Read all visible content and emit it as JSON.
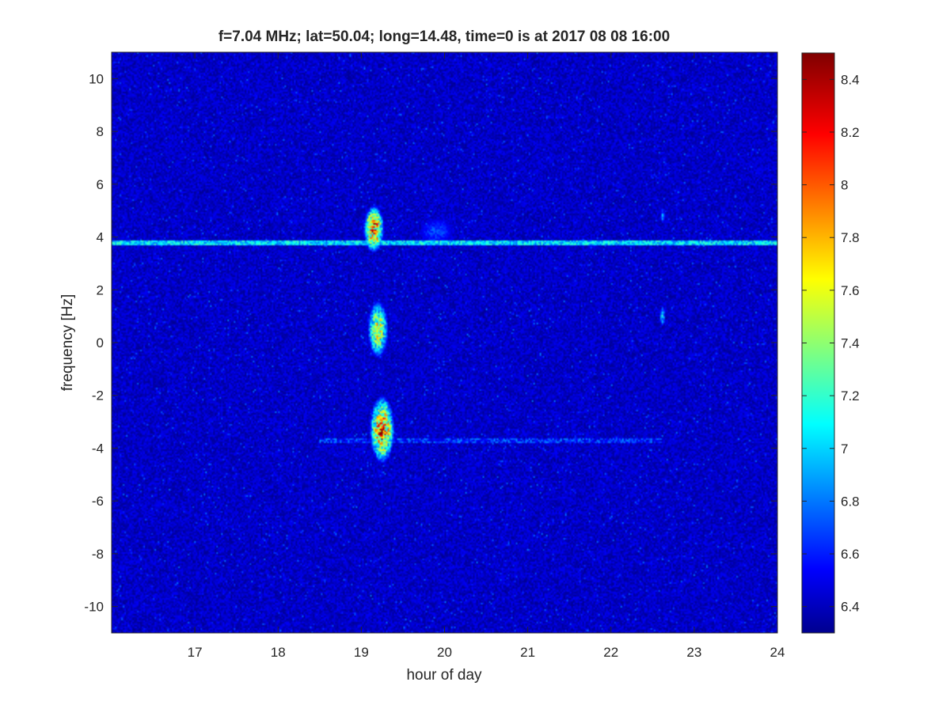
{
  "chart_data": {
    "type": "heatmap",
    "title": "f=7.04 MHz;  lat=50.04; long=14.48, time=0 is at 2017 08 08 16:00",
    "xlabel": "hour of day",
    "ylabel": "frequency [Hz]",
    "xlim": [
      16,
      24
    ],
    "ylim": [
      -11,
      11
    ],
    "x_ticks": [
      "17",
      "18",
      "19",
      "20",
      "21",
      "22",
      "23",
      "24"
    ],
    "y_ticks": [
      "10",
      "8",
      "6",
      "4",
      "2",
      "0",
      "-2",
      "-4",
      "-6",
      "-8",
      "-10"
    ],
    "colorbar": {
      "colormap": "jet",
      "range": [
        6.3,
        8.5
      ],
      "ticks": [
        "8.4",
        "8.2",
        "8",
        "7.8",
        "7.6",
        "7.4",
        "7.2",
        "7",
        "6.8",
        "6.6",
        "6.4"
      ]
    },
    "background_value": 6.45,
    "features": [
      {
        "kind": "horizontal-line",
        "frequency": 3.8,
        "x_range": [
          16,
          24
        ],
        "value": 7.3
      },
      {
        "kind": "horizontal-line",
        "frequency": -3.7,
        "x_range": [
          18.5,
          22.6
        ],
        "value": 6.9
      },
      {
        "kind": "blob",
        "hour": 19.15,
        "frequency": 4.3,
        "hour_width": 0.25,
        "freq_height": 1.8,
        "value": 8.4
      },
      {
        "kind": "blob",
        "hour": 19.2,
        "frequency": 0.5,
        "hour_width": 0.25,
        "freq_height": 2.2,
        "value": 7.9
      },
      {
        "kind": "blob",
        "hour": 19.25,
        "frequency": -3.3,
        "hour_width": 0.3,
        "freq_height": 2.6,
        "value": 8.4
      },
      {
        "kind": "blob",
        "hour": 19.9,
        "frequency": 4.2,
        "hour_width": 0.4,
        "freq_height": 1.0,
        "value": 6.8
      },
      {
        "kind": "blob",
        "hour": 22.62,
        "frequency": 1.0,
        "hour_width": 0.06,
        "freq_height": 0.8,
        "value": 7.2
      },
      {
        "kind": "blob",
        "hour": 22.62,
        "frequency": 4.8,
        "hour_width": 0.05,
        "freq_height": 0.6,
        "value": 7.0
      }
    ]
  }
}
